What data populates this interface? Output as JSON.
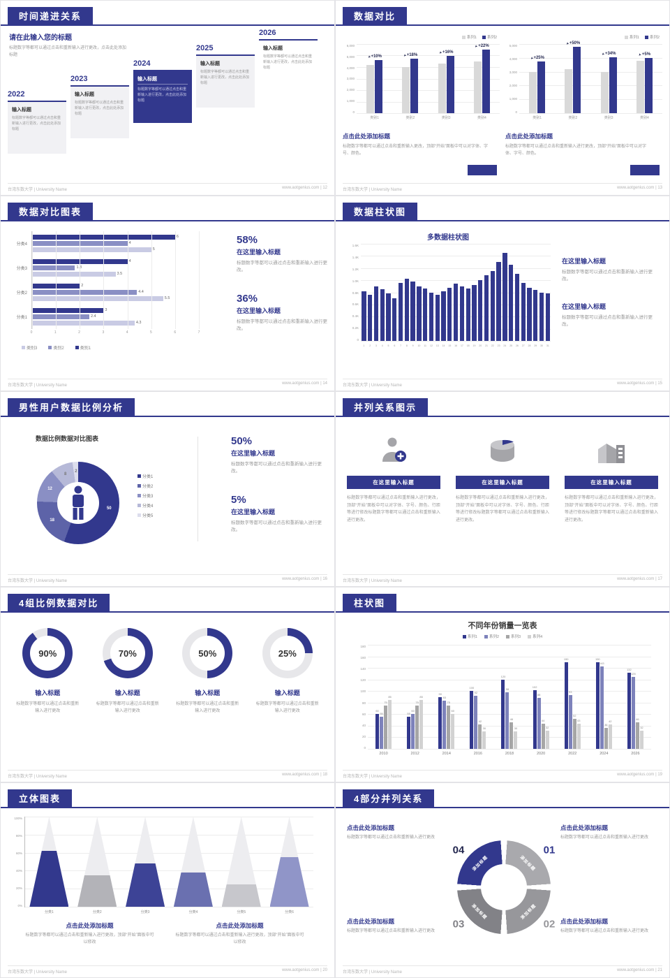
{
  "theme": {
    "primary": "#32388d",
    "bar_gray": "#d9d9d9",
    "series": [
      "#32388d",
      "#8a8fc4",
      "#c9cbe4"
    ],
    "s8_series": [
      "#32388d",
      "#7d82bb",
      "#a6a6a6",
      "#d2d2d2"
    ],
    "donut": [
      "#32388d",
      "#5d63a8",
      "#8a8fc4",
      "#b6b9d8",
      "#dcdded"
    ],
    "cone": [
      "#32388d",
      "#b3b3b8",
      "#3d4396",
      "#6a70b0",
      "#c7c7cc",
      "#9095c8"
    ],
    "ring10": [
      "#a9a9ad",
      "#97979b",
      "#828287",
      "#32388d"
    ]
  },
  "footer": {
    "university": "台湾东数大学 | University Name",
    "site": "www.aotgenius.com"
  },
  "slides": {
    "s1": {
      "title": "时间递进关系",
      "footer_right": "www.aotgenius.com | 12",
      "intro_title": "请在此输入您的标题",
      "intro_body": "标题数字等都可以通过点击和重新输入进行更改，点击此处添加标题",
      "milestones": [
        {
          "year": "2022",
          "label": "输入标题",
          "body": "标题数字等都可以通过点击和重新输入进行更改，点击此处添加标题",
          "variant": "light"
        },
        {
          "year": "2023",
          "label": "输入标题",
          "body": "标题数字等都可以通过点击和重新输入进行更改，点击此处添加标题",
          "variant": "light"
        },
        {
          "year": "2024",
          "label": "输入标题",
          "body": "标题数字等都可以通过点击和重新输入进行更改，点击此处添加标题",
          "variant": "dark"
        },
        {
          "year": "2025",
          "label": "输入标题",
          "body": "标题数字等都可以通过点击和重新输入进行更改，点击此处添加标题",
          "variant": "light"
        },
        {
          "year": "2026",
          "label": "输入标题",
          "body": "标题数字等都可以通过点击和重新输入进行更改，点击此处添加标题",
          "variant": "plain"
        }
      ]
    },
    "s2": {
      "title": "数据对比",
      "footer_right": "www.aotgenius.com | 13",
      "charts": [
        {
          "legend": [
            "系列1",
            "系列2"
          ],
          "categories": [
            "类别1",
            "类别2",
            "类别3",
            "类别4"
          ],
          "yticks": [
            "6,000",
            "5,000",
            "4,000",
            "3,000",
            "2,000",
            "1,000",
            "0"
          ],
          "ymax": 6000,
          "series": [
            {
              "name": "系列1",
              "values": [
                4200,
                4000,
                4300,
                4500
              ]
            },
            {
              "name": "系列2",
              "values": [
                4620,
                4720,
                4990,
                5490
              ]
            }
          ],
          "percents": [
            "+10%",
            "+18%",
            "+16%",
            "+22%"
          ],
          "caption": "点击此处添加标题",
          "body": "标题数字等都可以通过点击和重新输入更改，顶部“开始”面板中可以对字体、字号、颜色。"
        },
        {
          "legend": [
            "系列1",
            "系列2"
          ],
          "categories": [
            "类别1",
            "类别2",
            "类别3",
            "类别4"
          ],
          "yticks": [
            "5,000",
            "4,000",
            "3,000",
            "2,000",
            "1,000",
            "0"
          ],
          "ymax": 5000,
          "series": [
            {
              "name": "系列1",
              "values": [
                3000,
                3200,
                3000,
                3800
              ]
            },
            {
              "name": "系列2",
              "values": [
                3750,
                4800,
                4020,
                3990
              ]
            }
          ],
          "percents": [
            "+25%",
            "+50%",
            "+34%",
            "+5%"
          ],
          "caption": "点击此处添加标题",
          "body": "标题数字等都可以通过点击和重新输入进行更改，顶部“开始”面板中可以对字体、字号、颜色。"
        }
      ]
    },
    "s3": {
      "title": "数据对比图表",
      "footer_right": "www.aotgenius.com | 14",
      "chart": {
        "categories": [
          "分类4",
          "分类3",
          "分类2",
          "分类1"
        ],
        "series_names": [
          "类别1",
          "类别2",
          "类别3"
        ],
        "values": [
          [
            6,
            4,
            5
          ],
          [
            4,
            1.8,
            3.5
          ],
          [
            2,
            4.4,
            5.5
          ],
          [
            3,
            2.4,
            4.3
          ]
        ],
        "xticks": [
          "0",
          "1",
          "2",
          "3",
          "4",
          "5",
          "6",
          "7"
        ],
        "xmax": 7,
        "legend": [
          "类别3",
          "类别2",
          "类别1"
        ]
      },
      "stats": [
        {
          "pct": "58%",
          "heading": "在这里输入标题",
          "body": "标题数字等都可以通过点击和重新输入进行更改。"
        },
        {
          "pct": "36%",
          "heading": "在这里输入标题",
          "body": "标题数字等都可以通过点击和重新输入进行更改。"
        }
      ]
    },
    "s4": {
      "title": "数据柱状图",
      "footer_right": "www.aotgenius.com | 15",
      "chart_title": "多数据柱状图",
      "yticks": [
        "1.6K",
        "1.4K",
        "1.2K",
        "1.0K",
        "0.8K",
        "0.6K",
        "0.4K",
        "0.2K",
        "0"
      ],
      "ymax": 1600,
      "values": [
        820,
        760,
        900,
        850,
        780,
        700,
        950,
        1020,
        980,
        900,
        860,
        800,
        760,
        820,
        880,
        940,
        900,
        860,
        920,
        1000,
        1080,
        1150,
        1300,
        1450,
        1250,
        1100,
        950,
        880,
        840,
        800,
        780
      ],
      "xlabels": [
        "1",
        "2",
        "3",
        "4",
        "5",
        "6",
        "7",
        "8",
        "9",
        "10",
        "11",
        "12",
        "13",
        "14",
        "15",
        "16",
        "17",
        "18",
        "19",
        "20",
        "21",
        "22",
        "23",
        "24",
        "25",
        "26",
        "27",
        "28",
        "29",
        "30",
        "31"
      ],
      "stats": [
        {
          "heading": "在这里输入标题",
          "body": "标题数字等都可以通过点击和重新输入进行更改。"
        },
        {
          "heading": "在这里输入标题",
          "body": "标题数字等都可以通过点击和重新输入进行更改。"
        }
      ]
    },
    "s5": {
      "title": "男性用户数据比例分析",
      "footer_right": "www.aotgenius.com | 16",
      "chart_title": "数据比例数据对比图表",
      "donut": {
        "legend": [
          "分类1",
          "分类2",
          "分类3",
          "分类4",
          "分类5"
        ],
        "values": [
          50,
          18,
          12,
          8,
          2
        ],
        "display": [
          "50",
          "18",
          "12",
          "8",
          "2"
        ]
      },
      "stats": [
        {
          "pct": "50%",
          "heading": "在这里输入标题",
          "body": "标题数字等都可以通过点击和重新输入进行更改。"
        },
        {
          "pct": "5%",
          "heading": "在这里输入标题",
          "body": "标题数字等都可以通过点击和重新输入进行更改。"
        }
      ]
    },
    "s6": {
      "title": "并列关系图示",
      "footer_right": "www.aotgenius.com | 17",
      "items": [
        {
          "icon": "medical-person-icon",
          "heading": "在这里输入标题",
          "body": "标题数字等都可以通过点击和重新输入进行更改，顶部“开始”面板中可以对字体、字号、颜色、行距等进行修改标题数字等都可以通过点击和重新输入进行更改。"
        },
        {
          "icon": "cylinder-icon",
          "heading": "在这里输入标题",
          "body": "标题数字等都可以通过点击和重新输入进行更改，顶部“开始”面板中可以对字体、字号、颜色、行距等进行修改标题数字等都可以通过点击和重新输入进行更改。"
        },
        {
          "icon": "building-icon",
          "heading": "在这里输入标题",
          "body": "标题数字等都可以通过点击和重新输入进行更改，顶部“开始”面板中可以对字体、字号、颜色、行距等进行修改标题数字等都可以通过点击和重新输入进行更改。"
        }
      ]
    },
    "s7": {
      "title": "4组比例数据对比",
      "footer_right": "www.aotgenius.com | 18",
      "rings": [
        {
          "pct": "90%",
          "value": 90,
          "heading": "输入标题",
          "body": "标题数字等都可以通过点击和重新输入进行更改"
        },
        {
          "pct": "70%",
          "value": 70,
          "heading": "输入标题",
          "body": "标题数字等都可以通过点击和重新输入进行更改"
        },
        {
          "pct": "50%",
          "value": 50,
          "heading": "输入标题",
          "body": "标题数字等都可以通过点击和重新输入进行更改"
        },
        {
          "pct": "25%",
          "value": 25,
          "heading": "输入标题",
          "body": "标题数字等都可以通过点击和重新输入进行更改"
        }
      ]
    },
    "s8": {
      "title": "柱状图",
      "footer_right": "www.aotgenius.com | 19",
      "chart_title": "不同年份销量一览表",
      "legend": [
        "系列1",
        "系列2",
        "系列3",
        "系列4"
      ],
      "years": [
        "2010",
        "2012",
        "2014",
        "2016",
        "2018",
        "2020",
        "2022",
        "2024",
        "2026"
      ],
      "yticks": [
        "180",
        "160",
        "140",
        "120",
        "100",
        "80",
        "60",
        "40",
        "20",
        "0"
      ],
      "ymax": 180,
      "series": [
        {
          "name": "系列1",
          "values": [
            60,
            55,
            90,
            100,
            120,
            102,
            150,
            150,
            132
          ]
        },
        {
          "name": "系列2",
          "values": [
            55,
            60,
            83,
            92,
            98,
            88,
            93,
            143,
            125
          ]
        },
        {
          "name": "系列3",
          "values": [
            75,
            75,
            75,
            42,
            46,
            44,
            52,
            36,
            46
          ]
        },
        {
          "name": "系列4",
          "values": [
            85,
            85,
            60,
            30,
            30,
            32,
            43,
            42,
            32
          ]
        }
      ]
    },
    "s9": {
      "title": "立体图表",
      "footer_right": "www.aotgenius.com | 20",
      "categories": [
        "分类1",
        "分类2",
        "分类3",
        "分类4",
        "分类5",
        "分类6"
      ],
      "values": [
        62,
        35,
        48,
        38,
        25,
        55
      ],
      "yticks": [
        "100%",
        "80%",
        "60%",
        "40%",
        "20%",
        "0%"
      ],
      "notes": [
        {
          "heading": "点击此处添加标题",
          "body": "标题数字等都可以通过点击和重新输入进行更改，顶部“开始”面板中可以修改"
        },
        {
          "heading": "点击此处添加标题",
          "body": "标题数字等都可以通过点击和重新输入进行更改，顶部“开始”面板中可以修改"
        }
      ]
    },
    "s10": {
      "title": "4部分并列关系",
      "footer_right": "www.aotgenius.com | 21",
      "numbers": [
        "01",
        "02",
        "03",
        "04"
      ],
      "arc_label": "添加标题",
      "notes": [
        {
          "heading": "点击此处添加标题",
          "body": "标题数字等都可以通过点击和重新输入进行更改"
        },
        {
          "heading": "点击此处添加标题",
          "body": "标题数字等都可以通过点击和重新输入进行更改"
        },
        {
          "heading": "点击此处添加标题",
          "body": "标题数字等都可以通过点击和重新输入进行更改"
        },
        {
          "heading": "点击此处添加标题",
          "body": "标题数字等都可以通过点击和重新输入进行更改"
        }
      ]
    }
  }
}
